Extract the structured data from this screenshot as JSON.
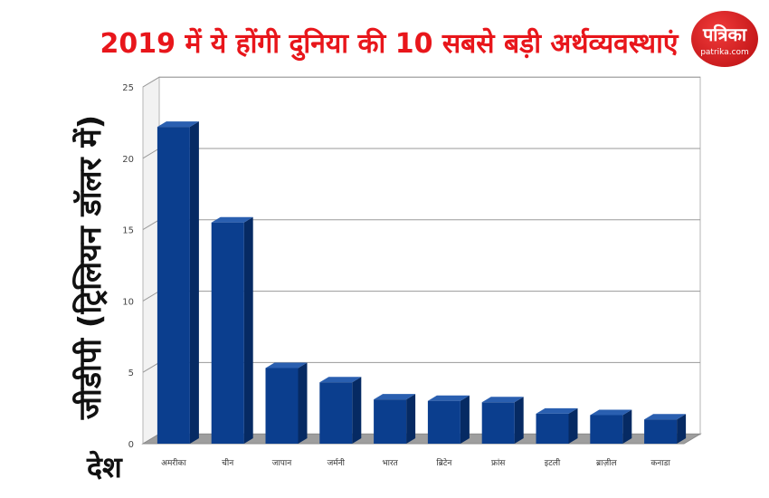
{
  "header": {
    "title": "2019 में ये होंगी दुनिया की 10 सबसे बड़ी अर्थव्यवस्थाएं",
    "logo_text": "पत्रिका",
    "logo_site": "patrika.com"
  },
  "colors": {
    "title": "#e8161b",
    "bar_front": "#0b3e8e",
    "bar_top": "#2a5fb0",
    "bar_side": "#062a63",
    "grid": "#9a9a9a",
    "floor": "#888888"
  },
  "chart_data": {
    "type": "bar",
    "title": "2019 में ये होंगी दुनिया की 10 सबसे बड़ी अर्थव्यवस्थाएं",
    "xlabel": "देश",
    "ylabel": "जीडीपी (ट्रिलियन डॉलर में)",
    "categories": [
      "अमरीका",
      "चीन",
      "जापान",
      "जर्मनी",
      "भारत",
      "ब्रिटेन",
      "फ्रांस",
      "इटली",
      "ब्राज़ील",
      "कनाडा"
    ],
    "values": [
      22.2,
      15.5,
      5.3,
      4.3,
      3.1,
      3.0,
      2.9,
      2.1,
      2.0,
      1.7
    ],
    "ylim": [
      0,
      25
    ],
    "yticks": [
      "0",
      "5",
      "10",
      "15",
      "20",
      "25"
    ],
    "grid": true,
    "style": "3d"
  }
}
